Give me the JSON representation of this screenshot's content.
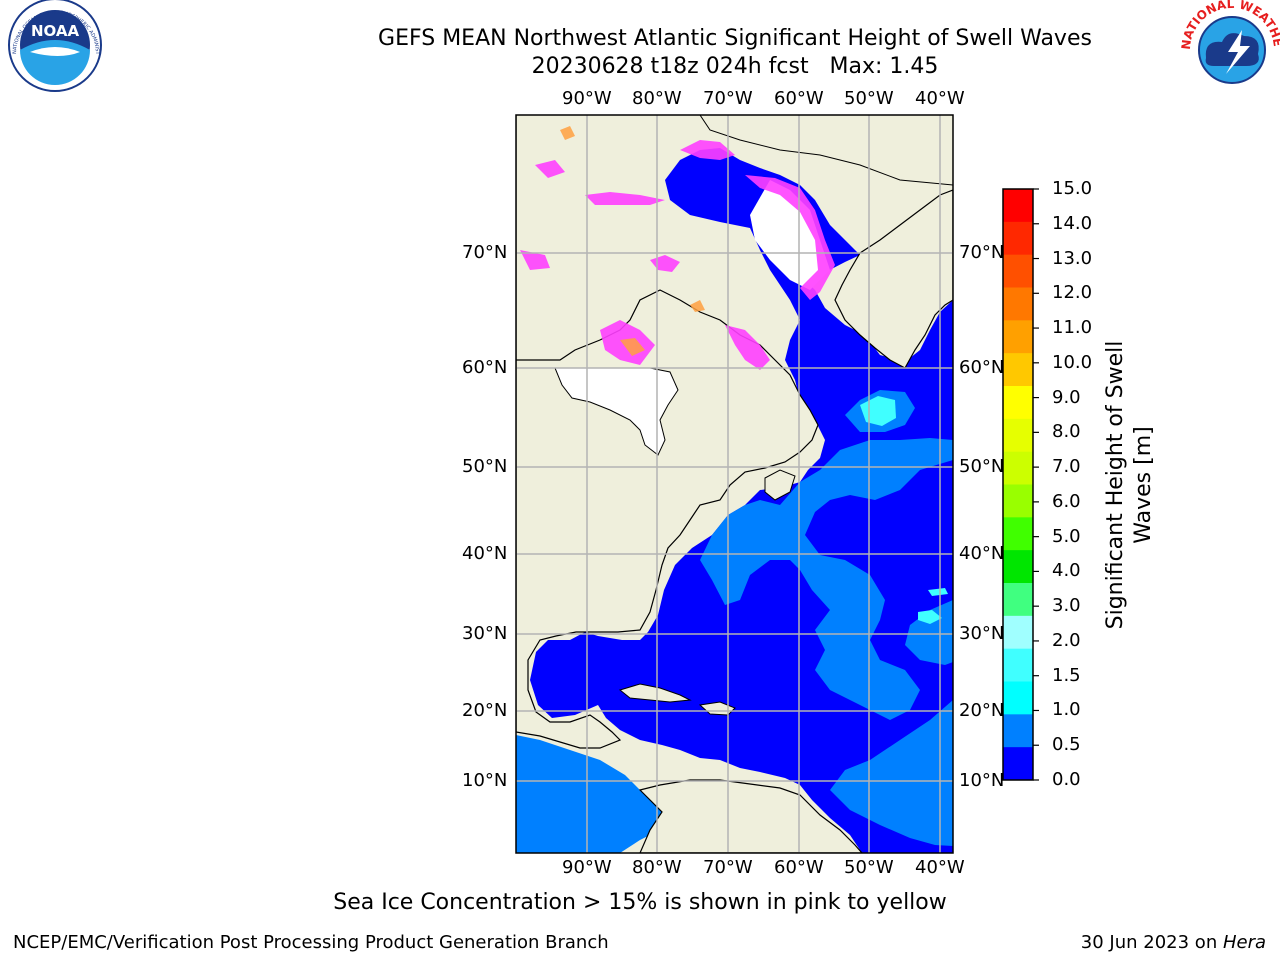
{
  "title": {
    "line1": "GEFS MEAN Northwest Atlantic Significant Height of Swell Waves",
    "line2": "20230628 t18z 024h fcst   Max: 1.45"
  },
  "map": {
    "lon_labels": [
      "90°W",
      "80°W",
      "70°W",
      "60°W",
      "50°W",
      "40°W"
    ],
    "lat_labels": [
      "70°N",
      "60°N",
      "50°N",
      "40°N",
      "30°N",
      "20°N",
      "10°N"
    ],
    "colors": {
      "land": "#efefdc",
      "ocean_low": "#0000ff",
      "ocean_mid": "#0080ff",
      "ocean_cyan": "#40ffff",
      "ice_pink": "#ff40ff",
      "ice_orange": "#ffa040",
      "grid": "#b4b4b4"
    }
  },
  "colorbar": {
    "label": "Significant Height of Swell Waves [m]",
    "ticks": [
      "15.0",
      "14.0",
      "13.0",
      "12.0",
      "11.0",
      "10.0",
      "9.0",
      "8.0",
      "7.0",
      "6.0",
      "5.0",
      "4.0",
      "3.0",
      "2.0",
      "1.5",
      "1.0",
      "0.5",
      "0.0"
    ],
    "colors": [
      "#ff0000",
      "#ff2800",
      "#ff5000",
      "#ff7800",
      "#ffa000",
      "#ffc800",
      "#ffff00",
      "#e6ff00",
      "#ccff00",
      "#99ff00",
      "#40ff00",
      "#00e600",
      "#40ff80",
      "#a0ffff",
      "#40ffff",
      "#00ffff",
      "#0080ff",
      "#0000ff"
    ]
  },
  "logos": {
    "noaa_text": "NOAA",
    "noaa_ring": "NATIONAL OCEANIC AND ATMOSPHERIC ADMINISTRATION · U.S. DEPARTMENT OF COMMERCE",
    "nws_ring": "NATIONAL WEATHER SERVICE"
  },
  "annotations": {
    "ice_note": "Sea Ice Concentration > 15% is shown in pink to yellow",
    "footer_left": "NCEP/EMC/Verification Post Processing Product Generation Branch",
    "footer_date": "30 Jun 2023 on ",
    "footer_host": "Hera"
  }
}
